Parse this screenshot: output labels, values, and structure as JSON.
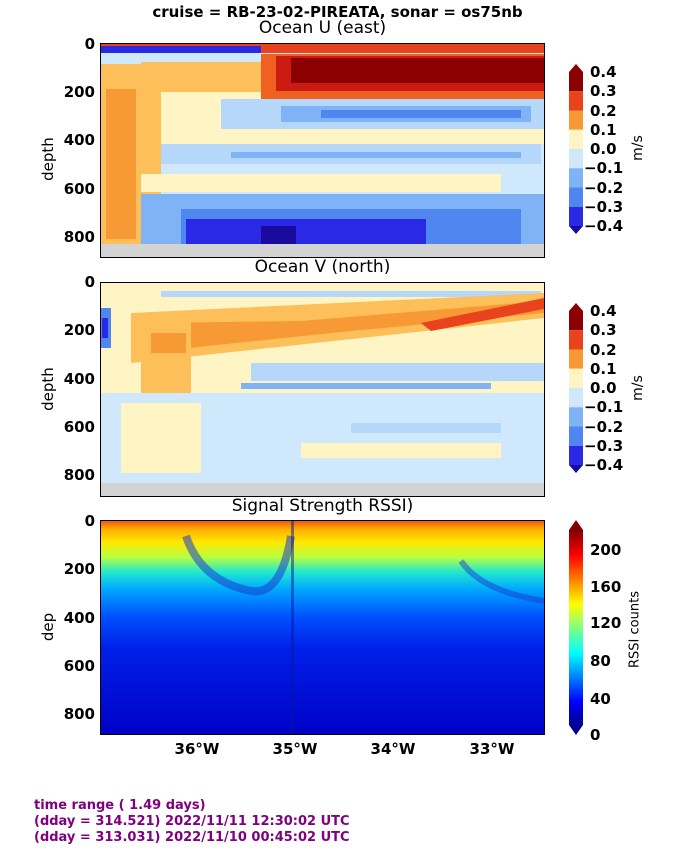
{
  "suptitle": "cruise = RB-23-02-PIREATA,  sonar = os75nb",
  "chart_data": [
    {
      "type": "heatmap",
      "title": "Ocean U (east)",
      "ylabel": "depth",
      "yticks": [
        "0",
        "200",
        "400",
        "600",
        "800"
      ],
      "ylim": [
        890,
        0
      ],
      "xlim": [
        -37.0,
        -32.5
      ],
      "colorbar": {
        "label": "m/s",
        "ticks": [
          "0.4",
          "0.3",
          "0.2",
          "0.1",
          "0.0",
          "−0.1",
          "−0.2",
          "−0.3",
          "−0.4"
        ],
        "levels": [
          -0.4,
          -0.3,
          -0.2,
          -0.1,
          0.0,
          0.1,
          0.2,
          0.3,
          0.4
        ]
      },
      "features": [
        {
          "desc": "strong eastward undercurrent core",
          "x": [
            -35.2,
            -32.5
          ],
          "depth": [
            40,
            160
          ],
          "value": 0.4
        },
        {
          "desc": "westward surface flow",
          "x": [
            -37,
            -35.5
          ],
          "depth": [
            0,
            40
          ],
          "value": -0.4
        },
        {
          "desc": "eastward western boundary flow",
          "x": [
            -37,
            -36.6
          ],
          "depth": [
            150,
            800
          ],
          "value": 0.2
        },
        {
          "desc": "deep westward flow",
          "x": [
            -36.2,
            -33.8
          ],
          "depth": [
            700,
            830
          ],
          "value": -0.35
        }
      ]
    },
    {
      "type": "heatmap",
      "title": "Ocean V (north)",
      "ylabel": "depth",
      "yticks": [
        "0",
        "200",
        "400",
        "600",
        "800"
      ],
      "ylim": [
        890,
        0
      ],
      "xlim": [
        -37.0,
        -32.5
      ],
      "colorbar": {
        "label": "m/s",
        "ticks": [
          "0.4",
          "0.3",
          "0.2",
          "0.1",
          "0.0",
          "−0.1",
          "−0.2",
          "−0.3",
          "−0.4"
        ],
        "levels": [
          -0.4,
          -0.3,
          -0.2,
          -0.1,
          0.0,
          0.1,
          0.2,
          0.3,
          0.4
        ]
      },
      "features": [
        {
          "desc": "northward band sloping upward east",
          "x": [
            -36.2,
            -32.5
          ],
          "depth": [
            80,
            260
          ],
          "value": 0.2
        },
        {
          "desc": "southward western edge",
          "x": [
            -37,
            -36.8
          ],
          "depth": [
            140,
            260
          ],
          "value": -0.35
        }
      ]
    },
    {
      "type": "heatmap",
      "title": "Signal Strength RSSI)",
      "ylabel": "dep",
      "yticks": [
        "0",
        "200",
        "400",
        "600",
        "800"
      ],
      "ylim": [
        890,
        0
      ],
      "xlim": [
        -37.0,
        -32.5
      ],
      "colorbar": {
        "label": "RSSI counts",
        "ticks": [
          "200",
          "160",
          "120",
          "80",
          "40",
          "0"
        ],
        "range": [
          0,
          225
        ]
      },
      "features": [
        {
          "desc": "high return near surface",
          "depth": [
            0,
            80
          ],
          "value": 200
        },
        {
          "desc": "mid-depth decay",
          "depth": [
            80,
            300
          ],
          "value": 100
        },
        {
          "desc": "low return at depth",
          "depth": [
            400,
            890
          ],
          "value": 35
        }
      ]
    }
  ],
  "xticks": [
    "36°W",
    "35°W",
    "34°W",
    "33°W"
  ],
  "footer": {
    "line1": "time range ( 1.49 days)",
    "line2": "(dday = 314.521) 2022/11/11 12:30:02 UTC",
    "line3": "(dday = 313.031) 2022/11/10 00:45:02 UTC"
  }
}
